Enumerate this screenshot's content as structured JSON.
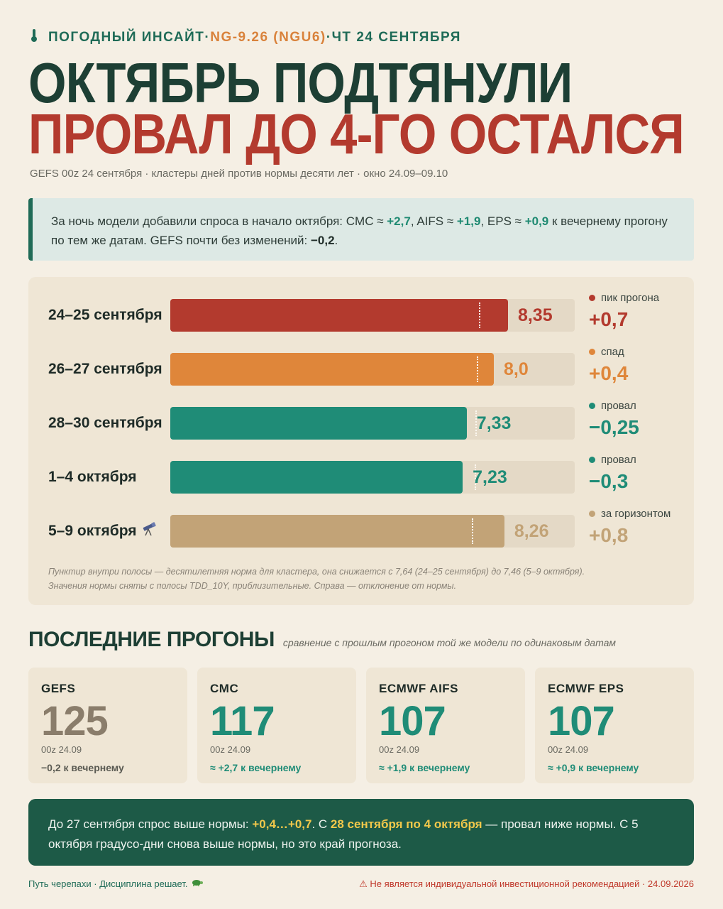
{
  "header": {
    "kicker_brand": "ПОГОДНЫЙ ИНСАЙТ",
    "kicker_sep1": " · ",
    "kicker_contract": "NG-9.26 (NGU6)",
    "kicker_sep2": " · ",
    "kicker_date": "ЧТ 24 СЕНТЯБРЯ",
    "title_line1": "ОКТЯБРЬ ПОДТЯНУЛИ",
    "title_line2": "ПРОВАЛ ДО 4-ГО ОСТАЛСЯ",
    "subtitle": "GEFS 00z 24 сентября · кластеры дней против нормы десяти лет · окно 24.09–09.10"
  },
  "callout": {
    "p1": "За ночь модели добавили спроса в начало октября: CMC ≈ ",
    "cmc": "+2,7",
    "p2": ", AIFS ≈ ",
    "aifs": "+1,9",
    "p3": ", EPS ≈ ",
    "eps": "+0,9",
    "p4": " к вечернему прогону по тем же датам. GEFS почти без изменений: ",
    "gefs": "−0,2",
    "p5": "."
  },
  "colors": {
    "red": "#b33a2e",
    "orange": "#df863a",
    "teal": "#1f8c77",
    "tan": "#c2a377",
    "dark_green": "#1d3f34"
  },
  "chart_data": {
    "type": "bar",
    "orientation": "horizontal",
    "xlim": [
      0,
      10
    ],
    "categories": [
      "24–25 сентября",
      "26–27 сентября",
      "28–30 сентября",
      "1–4 октября",
      "5–9 октября"
    ],
    "series": [
      {
        "values": [
          8.35,
          8.0,
          7.33,
          7.23,
          8.26
        ]
      }
    ],
    "norm_values": [
      7.64,
      7.58,
      7.55,
      7.53,
      7.46
    ],
    "value_labels": [
      "8,35",
      "8,0",
      "7,33",
      "7,23",
      "8,26"
    ],
    "deviation_labels": [
      "+0,7",
      "+0,4",
      "−0,25",
      "−0,3",
      "+0,8"
    ],
    "tags": [
      "пик прогона",
      "спад",
      "провал",
      "провал",
      "за горизонтом"
    ],
    "color_keys": [
      "red",
      "orange",
      "teal",
      "teal",
      "tan"
    ],
    "row_icons": [
      "",
      "",
      "",
      "",
      "telescope-icon"
    ],
    "footnote_line1": "Пунктир внутри полосы — десятилетняя норма для кластера, она снижается с 7,64 (24–25 сентября) до 7,46 (5–9 октября).",
    "footnote_line2": "Значения нормы сняты с полосы TDD_10Y, приблизительные. Справа — отклонение от нормы."
  },
  "runs": {
    "title": "ПОСЛЕДНИЕ ПРОГОНЫ",
    "subtitle": "сравнение с прошлым прогоном той же модели по одинаковым датам",
    "cards": [
      {
        "name": "GEFS",
        "value": "125",
        "date": "00z 24.09",
        "delta": "−0,2 к вечернему",
        "color_key": "gray"
      },
      {
        "name": "CMC",
        "value": "117",
        "date": "00z 24.09",
        "delta": "≈ +2,7 к вечернему",
        "color_key": "teal"
      },
      {
        "name": "ECMWF AIFS",
        "value": "107",
        "date": "00z 24.09",
        "delta": "≈ +1,9 к вечернему",
        "color_key": "teal"
      },
      {
        "name": "ECMWF EPS",
        "value": "107",
        "date": "00z 24.09",
        "delta": "≈ +0,9 к вечернему",
        "color_key": "teal"
      }
    ]
  },
  "summary": {
    "p1": "До 27 сентября спрос выше нормы: ",
    "h1": "+0,4…+0,7",
    "p2": ". С ",
    "h2": "28 сентября по 4 октября",
    "p3": " — провал ниже нормы. С 5 октября градусо-дни снова выше нормы, но это край прогноза."
  },
  "footer": {
    "left": "Путь черепахи · Дисциплина решает.",
    "right": "⚠ Не является индивидуальной инвестиционной рекомендацией · 24.09.2026"
  }
}
